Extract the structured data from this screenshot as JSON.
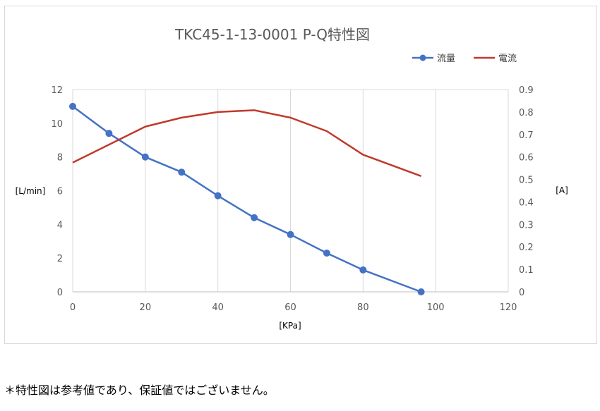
{
  "chart_data": {
    "type": "line",
    "title": "TKC45-1-13-0001 P-Q特性図",
    "xlabel": "[KPa]",
    "ylabel": "[L/min]",
    "y2label": "[A]",
    "xlim": [
      0,
      120
    ],
    "ylim": [
      0,
      12
    ],
    "y2lim": [
      0,
      0.9
    ],
    "x_ticks": [
      "0",
      "20",
      "40",
      "60",
      "80",
      "100",
      "120"
    ],
    "y_ticks": [
      "0",
      "2",
      "4",
      "6",
      "8",
      "10",
      "12"
    ],
    "y2_ticks": [
      "0",
      "0.1",
      "0.2",
      "0.3",
      "0.4",
      "0.5",
      "0.6",
      "0.7",
      "0.8",
      "0.9"
    ],
    "grid": "vertical",
    "legend_position": "top-right",
    "series": [
      {
        "name": "流量",
        "axis": "left",
        "color": "#4472c4",
        "markers": true,
        "x": [
          0,
          10,
          20,
          30,
          40,
          50,
          60,
          70,
          80,
          96
        ],
        "values": [
          11.0,
          9.4,
          8.0,
          7.1,
          5.7,
          4.4,
          3.4,
          2.3,
          1.3,
          0.0
        ]
      },
      {
        "name": "電流",
        "axis": "right",
        "color": "#c0392b",
        "markers": false,
        "x": [
          0,
          20,
          30,
          40,
          50,
          60,
          70,
          80,
          96
        ],
        "values": [
          0.575,
          0.735,
          0.775,
          0.8,
          0.808,
          0.775,
          0.715,
          0.61,
          0.515
        ]
      }
    ]
  },
  "footnote": "＊特性図は参考値であり、保証値ではございません。"
}
